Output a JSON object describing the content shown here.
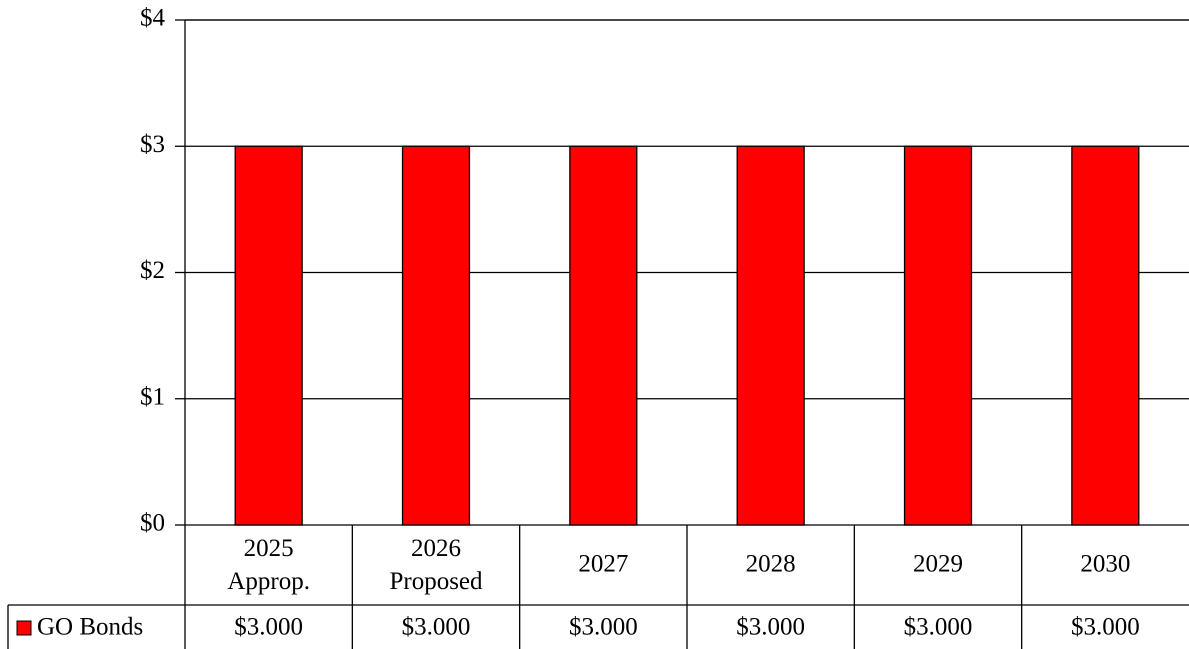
{
  "chart_data": {
    "type": "bar",
    "categories": [
      "2025 Approp.",
      "2026 Proposed",
      "2027",
      "2028",
      "2029",
      "2030"
    ],
    "series": [
      {
        "name": "GO Bonds",
        "color": "#ff0000",
        "values": [
          3,
          3,
          3,
          3,
          3,
          3
        ],
        "value_labels": [
          "$3.000",
          "$3.000",
          "$3.000",
          "$3.000",
          "$3.000",
          "$3.000"
        ]
      }
    ],
    "ylim": [
      0,
      4
    ],
    "yticks": [
      {
        "value": 0,
        "label": "$0"
      },
      {
        "value": 1,
        "label": "$1"
      },
      {
        "value": 2,
        "label": "$2"
      },
      {
        "value": 3,
        "label": "$3"
      },
      {
        "value": 4,
        "label": "$4"
      }
    ],
    "grid": true
  }
}
